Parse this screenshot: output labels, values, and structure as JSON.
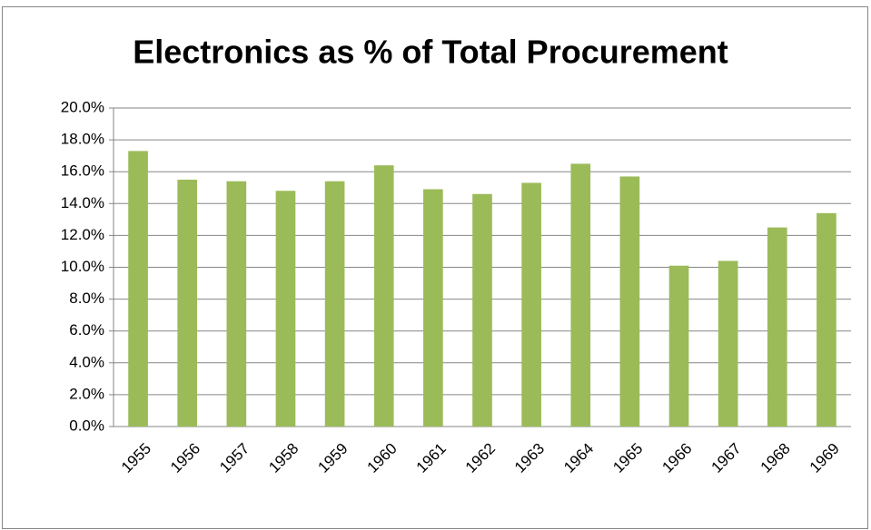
{
  "chart_data": {
    "type": "bar",
    "title": "Electronics as % of Total Procurement",
    "categories": [
      "1955",
      "1956",
      "1957",
      "1958",
      "1959",
      "1960",
      "1961",
      "1962",
      "1963",
      "1964",
      "1965",
      "1966",
      "1967",
      "1968",
      "1969"
    ],
    "values": [
      17.3,
      15.5,
      15.4,
      14.8,
      15.4,
      16.4,
      14.9,
      14.6,
      15.3,
      16.5,
      15.7,
      10.1,
      10.4,
      12.5,
      13.4
    ],
    "color": "#9bbb59",
    "ylim": [
      0,
      20
    ],
    "yticks": [
      {
        "value": 0,
        "label": "0.0%"
      },
      {
        "value": 2,
        "label": "2.0%"
      },
      {
        "value": 4,
        "label": "4.0%"
      },
      {
        "value": 6,
        "label": "6.0%"
      },
      {
        "value": 8,
        "label": "8.0%"
      },
      {
        "value": 10,
        "label": "10.0%"
      },
      {
        "value": 12,
        "label": "12.0%"
      },
      {
        "value": 14,
        "label": "14.0%"
      },
      {
        "value": 16,
        "label": "16.0%"
      },
      {
        "value": 18,
        "label": "18.0%"
      },
      {
        "value": 20,
        "label": "20.0%"
      }
    ],
    "grid": true
  }
}
